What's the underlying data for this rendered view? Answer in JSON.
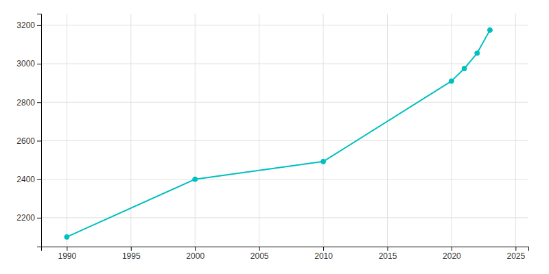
{
  "chart_data": {
    "type": "line",
    "x": [
      1990,
      2000,
      2010,
      2020,
      2021,
      2022,
      2023
    ],
    "values": [
      2100,
      2400,
      2492,
      2910,
      2975,
      3055,
      3175
    ],
    "color": "#00BFBF",
    "marker": "circle",
    "xlim": [
      1988,
      2026
    ],
    "ylim": [
      2050,
      3260
    ],
    "xticks": [
      1990,
      1995,
      2000,
      2005,
      2010,
      2015,
      2020,
      2025
    ],
    "yticks": [
      2200,
      2400,
      2600,
      2800,
      3000,
      3200
    ],
    "grid": true
  }
}
